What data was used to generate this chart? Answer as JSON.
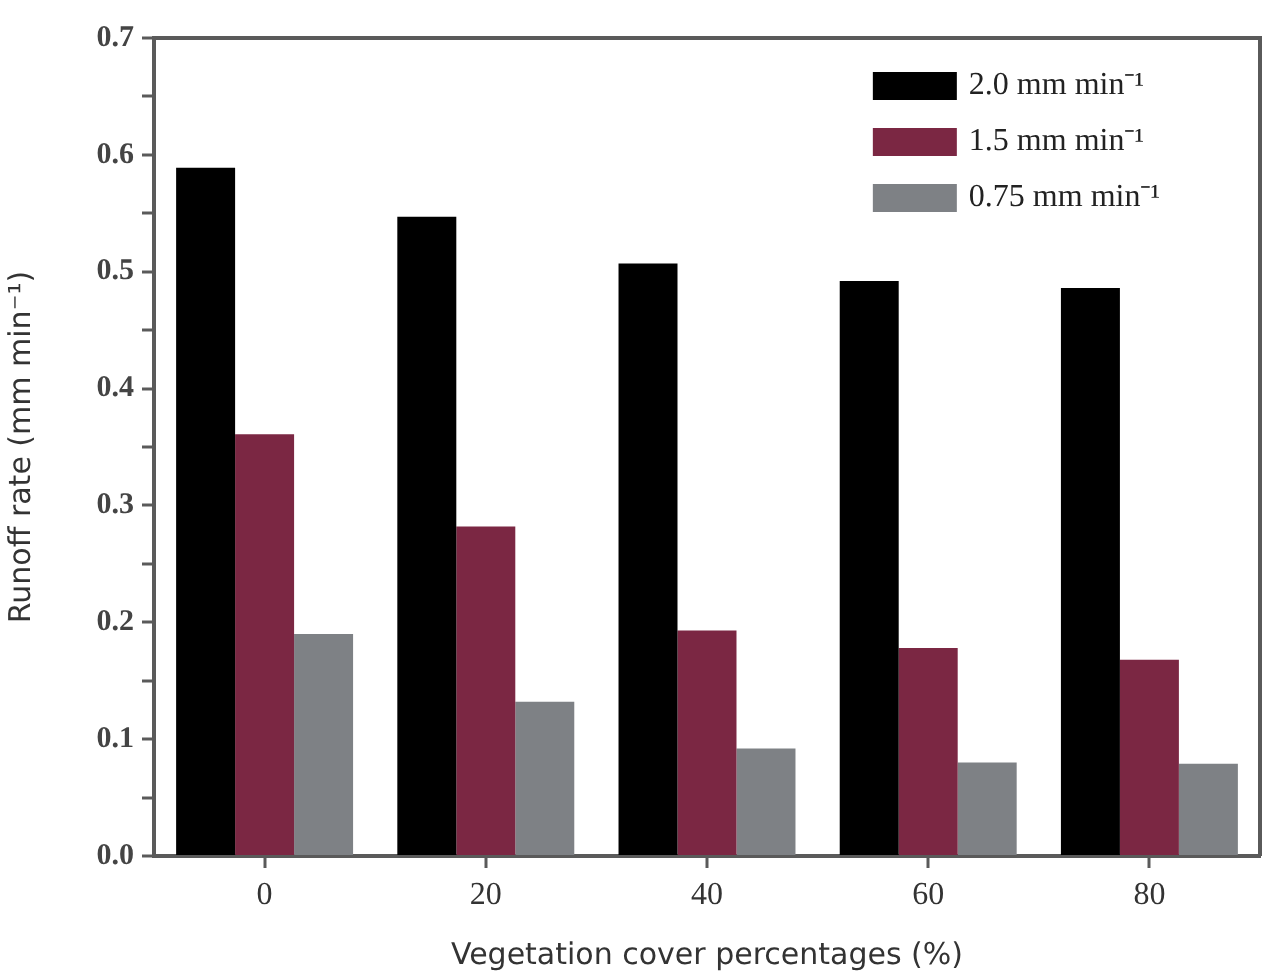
{
  "chart_data": {
    "type": "bar",
    "xlabel": "Vegetation cover percentages (%)",
    "ylabel": "Runoff rate (mm min⁻¹)",
    "categories": [
      "0",
      "20",
      "40",
      "60",
      "80"
    ],
    "series": [
      {
        "name": "2.0 mm min⁻¹",
        "color": "#000000",
        "values": [
          0.589,
          0.547,
          0.507,
          0.492,
          0.486
        ]
      },
      {
        "name": "1.5 mm min⁻¹",
        "color": "#7b2743",
        "values": [
          0.361,
          0.282,
          0.193,
          0.178,
          0.168
        ]
      },
      {
        "name": "0.75 mm min⁻¹",
        "color": "#7e8185",
        "values": [
          0.19,
          0.132,
          0.092,
          0.08,
          0.079
        ]
      }
    ],
    "ylim": [
      0,
      0.7
    ],
    "yticks": [
      {
        "value": 0,
        "label": "0.0"
      },
      {
        "value": 0.05,
        "label": null
      },
      0.1,
      {
        "value": 0.15,
        "label": null
      },
      0.2,
      {
        "value": 0.25,
        "label": null
      },
      0.3,
      {
        "value": 0.35,
        "label": null
      },
      0.4,
      {
        "value": 0.45,
        "label": null
      },
      0.5,
      {
        "value": 0.55,
        "label": null
      },
      0.6,
      {
        "value": 0.65,
        "label": null
      },
      0.7
    ],
    "legend": "top right"
  }
}
